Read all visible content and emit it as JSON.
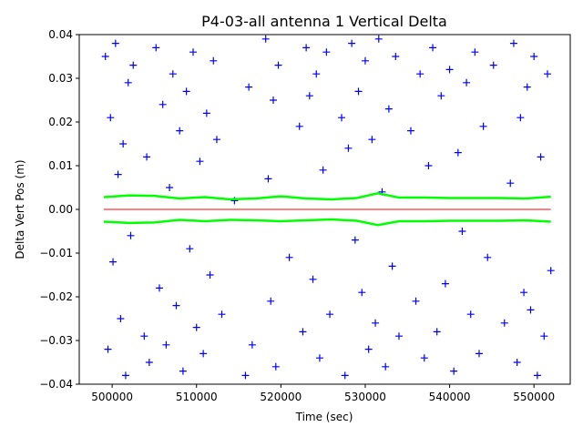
{
  "chart_data": {
    "type": "scatter",
    "title": "P4-03-all antenna 1 Vertical Delta",
    "x_label": "Time (sec)",
    "y_label": "Delta Vert Pos (m)",
    "xlim": [
      496100,
      554300
    ],
    "ylim": [
      -0.04,
      0.04
    ],
    "xticks": [
      500000,
      510000,
      520000,
      530000,
      540000,
      550000
    ],
    "yticks": [
      {
        "value": -0.04,
        "label": "−0.04"
      },
      {
        "value": -0.03,
        "label": "−0.03"
      },
      {
        "value": -0.02,
        "label": "−0.02"
      },
      {
        "value": -0.01,
        "label": "−0.01"
      },
      {
        "value": 0,
        "label": "0.00"
      },
      0.01,
      0.02,
      0.03,
      0.04
    ],
    "grid": false,
    "series": [
      {
        "color": "#0000ff",
        "marker": "plus",
        "x": [
          499200,
          499500,
          499800,
          500100,
          500400,
          500700,
          501000,
          501300,
          501600,
          501900,
          502200,
          502500,
          503800,
          504100,
          504400,
          505200,
          505600,
          506000,
          506400,
          506800,
          507200,
          507600,
          508000,
          508400,
          508800,
          509200,
          509600,
          510000,
          510400,
          510800,
          511200,
          511600,
          512000,
          512400,
          513000,
          514500,
          515800,
          516200,
          516600,
          518200,
          518500,
          518800,
          519100,
          519400,
          519700,
          521000,
          522200,
          522600,
          523000,
          523400,
          523800,
          524200,
          524600,
          525000,
          525400,
          525800,
          527200,
          527600,
          528000,
          528400,
          528800,
          529200,
          529600,
          530000,
          530400,
          530800,
          531200,
          531600,
          532000,
          532400,
          532800,
          533200,
          533600,
          534000,
          535400,
          536000,
          536500,
          537000,
          537500,
          538000,
          538500,
          539000,
          539500,
          540000,
          540500,
          541000,
          541500,
          542000,
          542500,
          543000,
          543500,
          544000,
          544500,
          545200,
          546500,
          547200,
          547600,
          548000,
          548400,
          548800,
          549200,
          549600,
          550000,
          550400,
          550800,
          551200,
          551600,
          552000
        ],
        "values": [
          0.035,
          -0.032,
          0.021,
          -0.012,
          0.038,
          0.008,
          -0.025,
          0.015,
          -0.038,
          0.029,
          -0.006,
          0.033,
          -0.029,
          0.012,
          -0.035,
          0.037,
          -0.018,
          0.024,
          -0.031,
          0.005,
          0.031,
          -0.022,
          0.018,
          -0.037,
          0.027,
          -0.009,
          0.036,
          -0.027,
          0.011,
          -0.033,
          0.022,
          -0.015,
          0.034,
          0.016,
          -0.024,
          0.002,
          -0.038,
          0.028,
          -0.031,
          0.039,
          0.007,
          -0.021,
          0.025,
          -0.036,
          0.033,
          -0.011,
          0.019,
          -0.028,
          0.037,
          0.026,
          -0.016,
          0.031,
          -0.034,
          0.009,
          0.036,
          -0.024,
          0.021,
          -0.038,
          0.014,
          0.038,
          -0.007,
          0.027,
          -0.019,
          0.034,
          -0.032,
          0.016,
          -0.026,
          0.039,
          0.004,
          -0.036,
          0.023,
          -0.013,
          0.035,
          -0.029,
          0.018,
          -0.021,
          0.031,
          -0.034,
          0.01,
          0.037,
          -0.028,
          0.026,
          -0.017,
          0.032,
          -0.037,
          0.013,
          -0.005,
          0.029,
          -0.024,
          0.036,
          -0.033,
          0.019,
          -0.011,
          0.033,
          -0.026,
          0.006,
          0.038,
          -0.035,
          0.021,
          -0.019,
          0.028,
          -0.023,
          0.035,
          -0.038,
          0.012,
          -0.029,
          0.031,
          -0.014
        ]
      },
      {
        "color": "#00ff00",
        "marker": "line",
        "x": [
          499000,
          502000,
          505000,
          508000,
          511000,
          514000,
          517000,
          520000,
          523000,
          526000,
          529000,
          531500,
          534000,
          537000,
          540000,
          543000,
          546000,
          549000,
          552000
        ],
        "values": [
          0.0028,
          0.0032,
          0.0031,
          0.0025,
          0.0028,
          0.0023,
          0.0025,
          0.003,
          0.0025,
          0.0023,
          0.0026,
          0.0037,
          0.0027,
          0.0027,
          0.0026,
          0.0026,
          0.0026,
          0.0025,
          0.0029
        ]
      },
      {
        "color": "#00ff00",
        "marker": "line",
        "x": [
          499000,
          502000,
          505000,
          508000,
          511000,
          514000,
          517000,
          520000,
          523000,
          526000,
          529000,
          531500,
          534000,
          537000,
          540000,
          543000,
          546000,
          549000,
          552000
        ],
        "values": [
          -0.0028,
          -0.0031,
          -0.003,
          -0.0024,
          -0.0027,
          -0.0024,
          -0.0025,
          -0.0027,
          -0.0025,
          -0.0023,
          -0.0026,
          -0.0036,
          -0.0027,
          -0.0027,
          -0.0026,
          -0.0026,
          -0.0026,
          -0.0025,
          -0.0028
        ]
      },
      {
        "color": "#ff0000",
        "marker": "line",
        "x": [
          499000,
          552000
        ],
        "values": [
          0,
          0
        ]
      }
    ]
  }
}
